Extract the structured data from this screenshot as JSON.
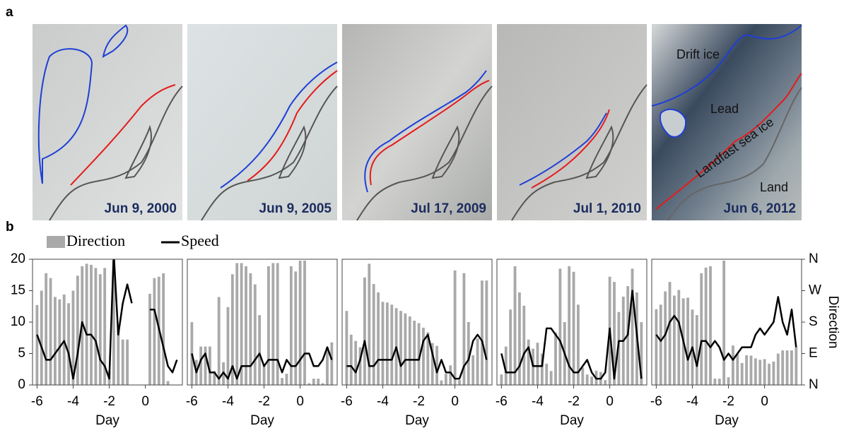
{
  "panel_a": {
    "label": "a",
    "images": [
      {
        "date": "Jun 9, 2000"
      },
      {
        "date": "Jun 9, 2005"
      },
      {
        "date": "Jul 17, 2009"
      },
      {
        "date": "Jul 1, 2010"
      },
      {
        "date": "Jun 6, 2012"
      }
    ],
    "annotations": [
      "Drift ice",
      "Lead",
      "Landfast sea ice",
      "Land"
    ]
  },
  "panel_b": {
    "label": "b"
  },
  "chart_data": [
    {
      "type": "combo",
      "xlabel": "Day",
      "xlim": [
        -6.25,
        2.05
      ],
      "xticks": [
        -6,
        -4,
        -2,
        0
      ],
      "ylim": [
        0,
        20
      ],
      "yticks": [
        0,
        5,
        10,
        15,
        20
      ],
      "y2lim": [
        0,
        360
      ],
      "x": [
        -6,
        -5.75,
        -5.5,
        -5.25,
        -5,
        -4.75,
        -4.5,
        -4.25,
        -4,
        -3.75,
        -3.5,
        -3.25,
        -3,
        -2.75,
        -2.5,
        -2.25,
        -2,
        -1.75,
        -1.5,
        -1.25,
        -1,
        -0.75,
        -0.5,
        -0.25,
        0,
        0.25,
        0.5,
        0.75,
        1,
        1.25,
        1.5,
        1.75
      ],
      "series": [
        {
          "name": "Direction",
          "kind": "bar",
          "axis": "y2",
          "color": "#a9a9a9",
          "values": [
            229,
            270,
            320,
            306,
            252,
            245,
            259,
            234,
            270,
            313,
            340,
            347,
            344,
            335,
            317,
            335,
            41,
            356,
            169,
            130,
            130,
            null,
            null,
            null,
            null,
            261,
            306,
            310,
            320,
            11,
            null,
            null
          ]
        },
        {
          "name": "Speed",
          "kind": "line",
          "color": "#000000",
          "values": [
            8,
            6,
            4,
            4,
            5,
            6,
            7,
            5,
            1,
            5,
            10,
            8,
            8,
            7,
            4,
            3,
            1,
            21,
            8,
            13,
            16,
            13,
            null,
            null,
            null,
            12,
            12,
            9,
            6,
            3,
            2,
            4
          ]
        }
      ]
    },
    {
      "type": "combo",
      "xlabel": "Day",
      "xlim": [
        -6.25,
        2.05
      ],
      "xticks": [
        -6,
        -4,
        -2,
        0
      ],
      "ylim": [
        0,
        20
      ],
      "y2lim": [
        0,
        360
      ],
      "x": [
        -6,
        -5.75,
        -5.5,
        -5.25,
        -5,
        -4.75,
        -4.5,
        -4.25,
        -4,
        -3.75,
        -3.5,
        -3.25,
        -3,
        -2.75,
        -2.5,
        -2.25,
        -2,
        -1.75,
        -1.5,
        -1.25,
        -1,
        -0.75,
        -0.5,
        -0.25,
        0,
        0.25,
        0.5,
        0.75,
        1,
        1.25,
        1.5,
        1.75
      ],
      "series": [
        {
          "kind": "bar",
          "axis": "y2",
          "color": "#a9a9a9",
          "values": [
            180,
            72,
            110,
            110,
            110,
            40,
            252,
            65,
            223,
            317,
            349,
            349,
            340,
            320,
            288,
            200,
            59,
            340,
            349,
            349,
            20,
            32,
            340,
            325,
            356,
            356,
            5,
            18,
            18,
            5,
            108,
            122
          ]
        },
        {
          "kind": "line",
          "color": "#000000",
          "values": [
            5,
            2,
            4,
            5,
            2,
            2,
            1,
            2,
            1,
            3,
            1,
            3,
            3,
            3,
            4,
            5,
            3,
            4,
            4,
            4,
            2,
            4,
            3,
            3,
            4,
            5,
            5,
            3,
            3,
            4,
            6,
            4
          ]
        }
      ]
    },
    {
      "type": "combo",
      "xlabel": "Day",
      "xlim": [
        -6.25,
        2.05
      ],
      "xticks": [
        -6,
        -4,
        -2,
        0
      ],
      "ylim": [
        0,
        20
      ],
      "y2lim": [
        0,
        360
      ],
      "x": [
        -6,
        -5.75,
        -5.5,
        -5.25,
        -5,
        -4.75,
        -4.5,
        -4.25,
        -4,
        -3.75,
        -3.5,
        -3.25,
        -3,
        -2.75,
        -2.5,
        -2.25,
        -2,
        -1.75,
        -1.5,
        -1.25,
        -1,
        -0.75,
        -0.5,
        -0.25,
        0,
        0.25,
        0.5,
        0.75,
        1,
        1.25,
        1.5,
        1.75
      ],
      "series": [
        {
          "kind": "bar",
          "axis": "y2",
          "color": "#a9a9a9",
          "values": [
            212,
            144,
            126,
            108,
            308,
            347,
            289,
            265,
            238,
            236,
            230,
            220,
            212,
            205,
            196,
            184,
            177,
            164,
            151,
            120,
            112,
            13,
            32,
            56,
            328,
            14,
            320,
            180,
            85,
            133,
            299,
            299
          ]
        },
        {
          "kind": "line",
          "color": "#000000",
          "values": [
            3,
            3,
            2,
            4,
            7,
            3,
            3,
            4,
            4,
            4,
            4,
            6,
            3,
            4,
            4,
            4,
            4,
            7,
            8,
            5,
            2,
            4,
            2,
            2,
            1,
            1,
            3,
            4,
            7,
            8,
            7,
            4
          ]
        }
      ]
    },
    {
      "type": "combo",
      "xlabel": "Day",
      "xlim": [
        -6.25,
        2.05
      ],
      "xticks": [
        -6,
        -4,
        -2,
        0
      ],
      "ylim": [
        0,
        20
      ],
      "y2lim": [
        0,
        360
      ],
      "x": [
        -6,
        -5.75,
        -5.5,
        -5.25,
        -5,
        -4.75,
        -4.5,
        -4.25,
        -4,
        -3.75,
        -3.5,
        -3.25,
        -3,
        -2.75,
        -2.5,
        -2.25,
        -2,
        -1.75,
        -1.5,
        -1.25,
        -1,
        -0.75,
        -0.5,
        -0.25,
        0,
        0.25,
        0.5,
        0.75,
        1,
        1.25,
        1.5,
        1.75
      ],
      "series": [
        {
          "kind": "bar",
          "axis": "y2",
          "color": "#a9a9a9",
          "values": [
            30,
            110,
            216,
            340,
            265,
            227,
            130,
            104,
            121,
            90,
            61,
            40,
            150,
            333,
            180,
            340,
            324,
            230,
            50,
            30,
            24,
            41,
            37,
            14,
            310,
            295,
            209,
            253,
            283,
            333,
            265,
            180
          ]
        },
        {
          "kind": "line",
          "color": "#000000",
          "values": [
            5,
            2,
            2,
            2,
            3,
            5,
            6,
            3,
            3,
            3,
            9,
            9,
            8,
            7,
            5,
            3,
            2,
            2,
            3,
            4,
            2,
            1,
            1,
            2,
            9,
            1,
            7,
            7,
            8,
            15,
            8,
            1
          ]
        }
      ]
    },
    {
      "type": "combo",
      "xlabel": "Day",
      "xlim": [
        -6.25,
        2.05
      ],
      "xticks": [
        -6,
        -4,
        -2,
        0
      ],
      "ylim": [
        0,
        20
      ],
      "y2lim": [
        0,
        360
      ],
      "y2label": "Direction",
      "y2ticks": [
        {
          "value": 0,
          "label": "N"
        },
        {
          "value": 90,
          "label": "E"
        },
        {
          "value": 180,
          "label": "S"
        },
        {
          "value": 270,
          "label": "W"
        },
        {
          "value": 360,
          "label": "N"
        }
      ],
      "x": [
        -6,
        -5.75,
        -5.5,
        -5.25,
        -5,
        -4.75,
        -4.5,
        -4.25,
        -4,
        -3.75,
        -3.5,
        -3.25,
        -3,
        -2.75,
        -2.5,
        -2.25,
        -2,
        -1.75,
        -1.5,
        -1.25,
        -1,
        -0.75,
        -0.5,
        -0.25,
        0,
        0.25,
        0.5,
        0.75,
        1,
        1.25,
        1.5,
        1.75
      ],
      "series": [
        {
          "kind": "bar",
          "axis": "y2",
          "color": "#a9a9a9",
          "values": [
            217,
            230,
            268,
            295,
            256,
            272,
            248,
            250,
            216,
            200,
            320,
            336,
            340,
            18,
            18,
            356,
            22,
            113,
            88,
            63,
            85,
            84,
            76,
            72,
            74,
            61,
            67,
            90,
            99,
            99,
            99,
            108
          ]
        },
        {
          "kind": "line",
          "color": "#000000",
          "values": [
            8,
            7,
            8,
            10,
            11,
            10,
            7,
            4,
            6,
            3,
            7,
            7,
            6,
            7,
            6,
            4,
            5,
            4,
            5,
            6,
            6,
            6,
            8,
            9,
            8,
            9,
            10,
            14,
            10,
            8,
            12,
            6
          ]
        }
      ]
    }
  ]
}
